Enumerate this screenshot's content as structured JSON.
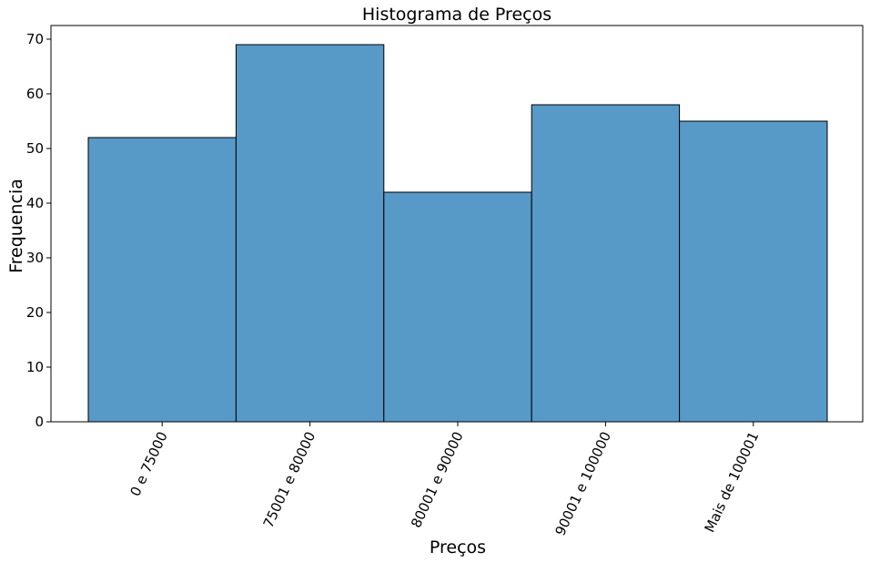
{
  "chart_data": {
    "type": "bar",
    "title": "Histograma de Preços",
    "xlabel": "Preços",
    "ylabel": "Frequencia",
    "categories": [
      "0 e 75000",
      "75001 e 80000",
      "80001 e 90000",
      "90001 e 100000",
      "Mais de 100001"
    ],
    "values": [
      52,
      69,
      42,
      58,
      55
    ],
    "ylim": [
      0,
      72.5
    ],
    "yticks": [
      "0",
      "10",
      "20",
      "30",
      "40",
      "50",
      "60",
      "70"
    ],
    "grid": false,
    "bar_color": "#5799c7",
    "edge_color": "#000000"
  }
}
